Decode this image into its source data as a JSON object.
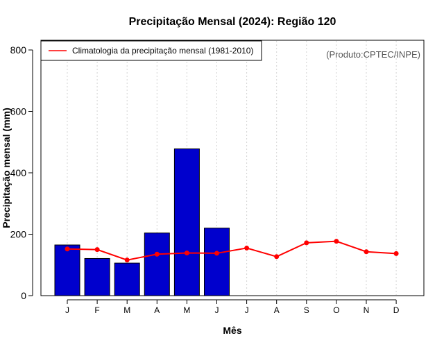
{
  "chart_data": {
    "type": "bar",
    "title": "Precipitação Mensal (2024): Região 120",
    "xlabel": "Mês",
    "ylabel": "Precipitação mensal (mm)",
    "ylim": [
      0,
      800
    ],
    "y_ticks": [
      0,
      200,
      400,
      600,
      800
    ],
    "categories": [
      "J",
      "F",
      "M",
      "A",
      "M",
      "J",
      "J",
      "A",
      "S",
      "O",
      "N",
      "D"
    ],
    "series": [
      {
        "name": "Precipitação mensal 2024",
        "type": "bar",
        "color": "#0000cd",
        "values": [
          165,
          121,
          106,
          204,
          478,
          220,
          null,
          null,
          null,
          null,
          null,
          null
        ]
      },
      {
        "name": "Climatologia da precipitação mensal (1981-2010)",
        "type": "line",
        "color": "#ff0000",
        "values": [
          152,
          150,
          116,
          135,
          139,
          138,
          155,
          127,
          172,
          177,
          143,
          137
        ]
      }
    ],
    "legend_label": "Climatologia da precipitação mensal (1981-2010)",
    "legend_position": "top-left",
    "source_note": "(Produto:CPTEC/INPE)",
    "grid": "vertical dotted"
  }
}
